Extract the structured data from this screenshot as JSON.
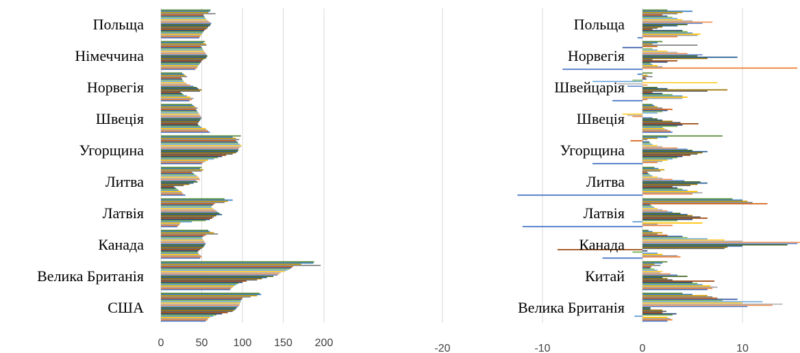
{
  "chart_data": [
    {
      "type": "bar",
      "orientation": "horizontal",
      "categories": [
        "США",
        "Велика Британія",
        "Канада",
        "Латвія",
        "Литва",
        "Угорщина",
        "Швеція",
        "Норвегія",
        "Німеччина",
        "Польща"
      ],
      "x_ticks": [
        "0",
        "50",
        "100",
        "150",
        "200"
      ],
      "xlim": [
        0,
        200
      ],
      "grid": true,
      "legend": "none",
      "bars_per_category": 24,
      "values": [
        [
          55,
          57,
          58,
          60,
          64,
          68,
          75,
          82,
          88,
          90,
          92,
          93,
          95,
          96,
          97,
          97,
          98,
          98,
          99,
          100,
          110,
          118,
          123,
          121
        ],
        [
          85,
          86,
          88,
          90,
          92,
          95,
          100,
          105,
          118,
          124,
          130,
          138,
          143,
          145,
          147,
          152,
          155,
          158,
          160,
          162,
          196,
          172,
          187,
          188
        ],
        [
          48,
          50,
          49,
          47,
          46,
          45,
          46,
          48,
          50,
          52,
          53,
          54,
          55,
          54,
          53,
          52,
          51,
          50,
          52,
          55,
          70,
          65,
          60,
          58
        ],
        [
          20,
          22,
          23,
          24,
          38,
          55,
          60,
          63,
          65,
          68,
          75,
          72,
          70,
          68,
          66,
          64,
          62,
          62,
          64,
          66,
          78,
          82,
          88,
          78
        ],
        [
          30,
          27,
          26,
          25,
          22,
          20,
          18,
          16,
          28,
          35,
          40,
          45,
          43,
          48,
          47,
          46,
          44,
          42,
          40,
          38,
          50,
          52,
          48,
          50
        ],
        [
          50,
          52,
          55,
          58,
          65,
          70,
          75,
          80,
          88,
          92,
          94,
          95,
          95,
          96,
          98,
          99,
          97,
          95,
          94,
          92,
          96,
          92,
          88,
          98
        ],
        [
          60,
          58,
          56,
          55,
          50,
          48,
          46,
          45,
          46,
          47,
          48,
          49,
          50,
          49,
          48,
          47,
          46,
          45,
          44,
          43,
          45,
          42,
          40,
          38
        ],
        [
          35,
          38,
          40,
          36,
          32,
          28,
          26,
          24,
          48,
          50,
          46,
          44,
          40,
          36,
          32,
          30,
          28,
          27,
          26,
          25,
          32,
          30,
          28,
          26
        ],
        [
          42,
          44,
          45,
          46,
          47,
          48,
          49,
          50,
          52,
          55,
          56,
          57,
          56,
          55,
          54,
          53,
          52,
          51,
          50,
          49,
          56,
          55,
          52,
          54
        ],
        [
          47,
          48,
          49,
          50,
          51,
          52,
          53,
          55,
          57,
          58,
          60,
          61,
          62,
          60,
          58,
          56,
          55,
          54,
          53,
          52,
          67,
          58,
          60,
          61
        ]
      ]
    },
    {
      "type": "bar",
      "orientation": "horizontal",
      "categories": [
        "Велика Британія",
        "Китай",
        "Канада",
        "Латвія",
        "Литва",
        "Угорщина",
        "Швеція",
        "Швейцарія",
        "Норвегія",
        "Польща"
      ],
      "x_ticks": [
        "-20",
        "-10",
        "0",
        "10"
      ],
      "xlim": [
        -20,
        15
      ],
      "grid": true,
      "legend": "none",
      "bars_per_category": 24,
      "values": [
        [
          2.5,
          3.0,
          2.8,
          2.5,
          -0.8,
          3.0,
          3.4,
          2.0,
          2.4,
          2.0,
          0.8,
          0.8,
          10.5,
          13.0,
          14.0,
          10.0,
          12.0,
          8.0,
          9.5,
          7.5,
          7.0,
          6.5,
          5.0,
          4.0
        ],
        [
          6.5,
          7.0,
          7.5,
          6.8,
          6.0,
          5.5,
          5.0,
          7.2,
          3.0,
          2.5,
          2.0,
          4.5,
          3.5,
          2.8,
          1.8,
          2.0,
          1.5,
          1.2,
          0.8,
          0.9,
          1.8,
          1.2,
          2.0,
          2.5
        ],
        [
          -4.0,
          3.8,
          3.5,
          2.0,
          1.5,
          -1.0,
          0.5,
          -8.5,
          8.2,
          8.5,
          10.0,
          14.5,
          15.5,
          15.8,
          10.0,
          8.2,
          6.5,
          4.5,
          4.0,
          2.5,
          1.5,
          2.0,
          1.0,
          0.6
        ],
        [
          -12.0,
          3.0,
          1.5,
          6.0,
          -1.0,
          3.5,
          5.0,
          6.5,
          5.8,
          5.0,
          4.5,
          3.8,
          3.0,
          2.5,
          2.0,
          1.5,
          1.2,
          1.0,
          0.8,
          12.5,
          11.0,
          10.5,
          10.0,
          9.0
        ],
        [
          -12.5,
          5.0,
          6.0,
          5.5,
          4.5,
          4.0,
          3.5,
          3.0,
          4.8,
          5.5,
          6.5,
          5.8,
          4.2,
          3.0,
          2.0,
          1.5,
          1.0,
          0.8,
          0.6,
          0.5,
          1.8,
          2.2,
          1.6,
          1.2
        ],
        [
          -5.0,
          1.5,
          2.0,
          2.5,
          3.0,
          3.5,
          4.0,
          4.8,
          5.5,
          6.0,
          6.5,
          5.0,
          4.5,
          3.5,
          2.0,
          1.5,
          1.0,
          0.8,
          0.7,
          -1.2,
          0.5,
          1.5,
          2.5,
          8.0
        ],
        [
          3.0,
          2.8,
          2.5,
          2.2,
          2.0,
          3.5,
          4.0,
          5.6,
          3.8,
          3.0,
          2.0,
          1.5,
          1.0,
          -1.0,
          -1.5,
          -2.0,
          1.5,
          2.0,
          2.5,
          3.0,
          2.0,
          1.5,
          1.2,
          1.0
        ],
        [
          -3.0,
          0.5,
          4.0,
          4.5,
          4.0,
          3.0,
          2.0,
          1.0,
          6.5,
          8.5,
          2.5,
          1.5,
          -1.5,
          0.5,
          -2.5,
          7.5,
          -5.0,
          -1.0,
          0.4,
          0.3,
          1.0,
          0.5,
          -0.5,
          1.0
        ],
        [
          -8.0,
          15.5,
          2.0,
          1.5,
          1.0,
          0.8,
          2.5,
          3.5,
          1.0,
          6.5,
          9.5,
          5.5,
          6.0,
          4.5,
          3.5,
          2.5,
          1.5,
          1.0,
          -2.0,
          1.5,
          5.5,
          1.0,
          1.5,
          2.0
        ],
        [
          -0.5,
          3.5,
          5.5,
          5.8,
          5.0,
          4.5,
          4.0,
          1.0,
          1.5,
          2.0,
          3.5,
          4.5,
          6.0,
          7.0,
          5.0,
          4.0,
          3.5,
          3.0,
          2.5,
          2.0,
          3.5,
          4.0,
          5.0,
          2.5
        ]
      ]
    }
  ],
  "series_colors": [
    "#4472c4",
    "#ed7d31",
    "#a5a5a5",
    "#ffc000",
    "#5b9bd5",
    "#70ad47",
    "#264478",
    "#9e480e",
    "#636363",
    "#997300",
    "#255e91",
    "#43682b",
    "#698ed0",
    "#f1975a",
    "#b7b7b7",
    "#ffcd33",
    "#7cafdd",
    "#8cc168",
    "#335aa1",
    "#d26012",
    "#848484",
    "#cc9a00",
    "#327dc2",
    "#5a8a39"
  ]
}
